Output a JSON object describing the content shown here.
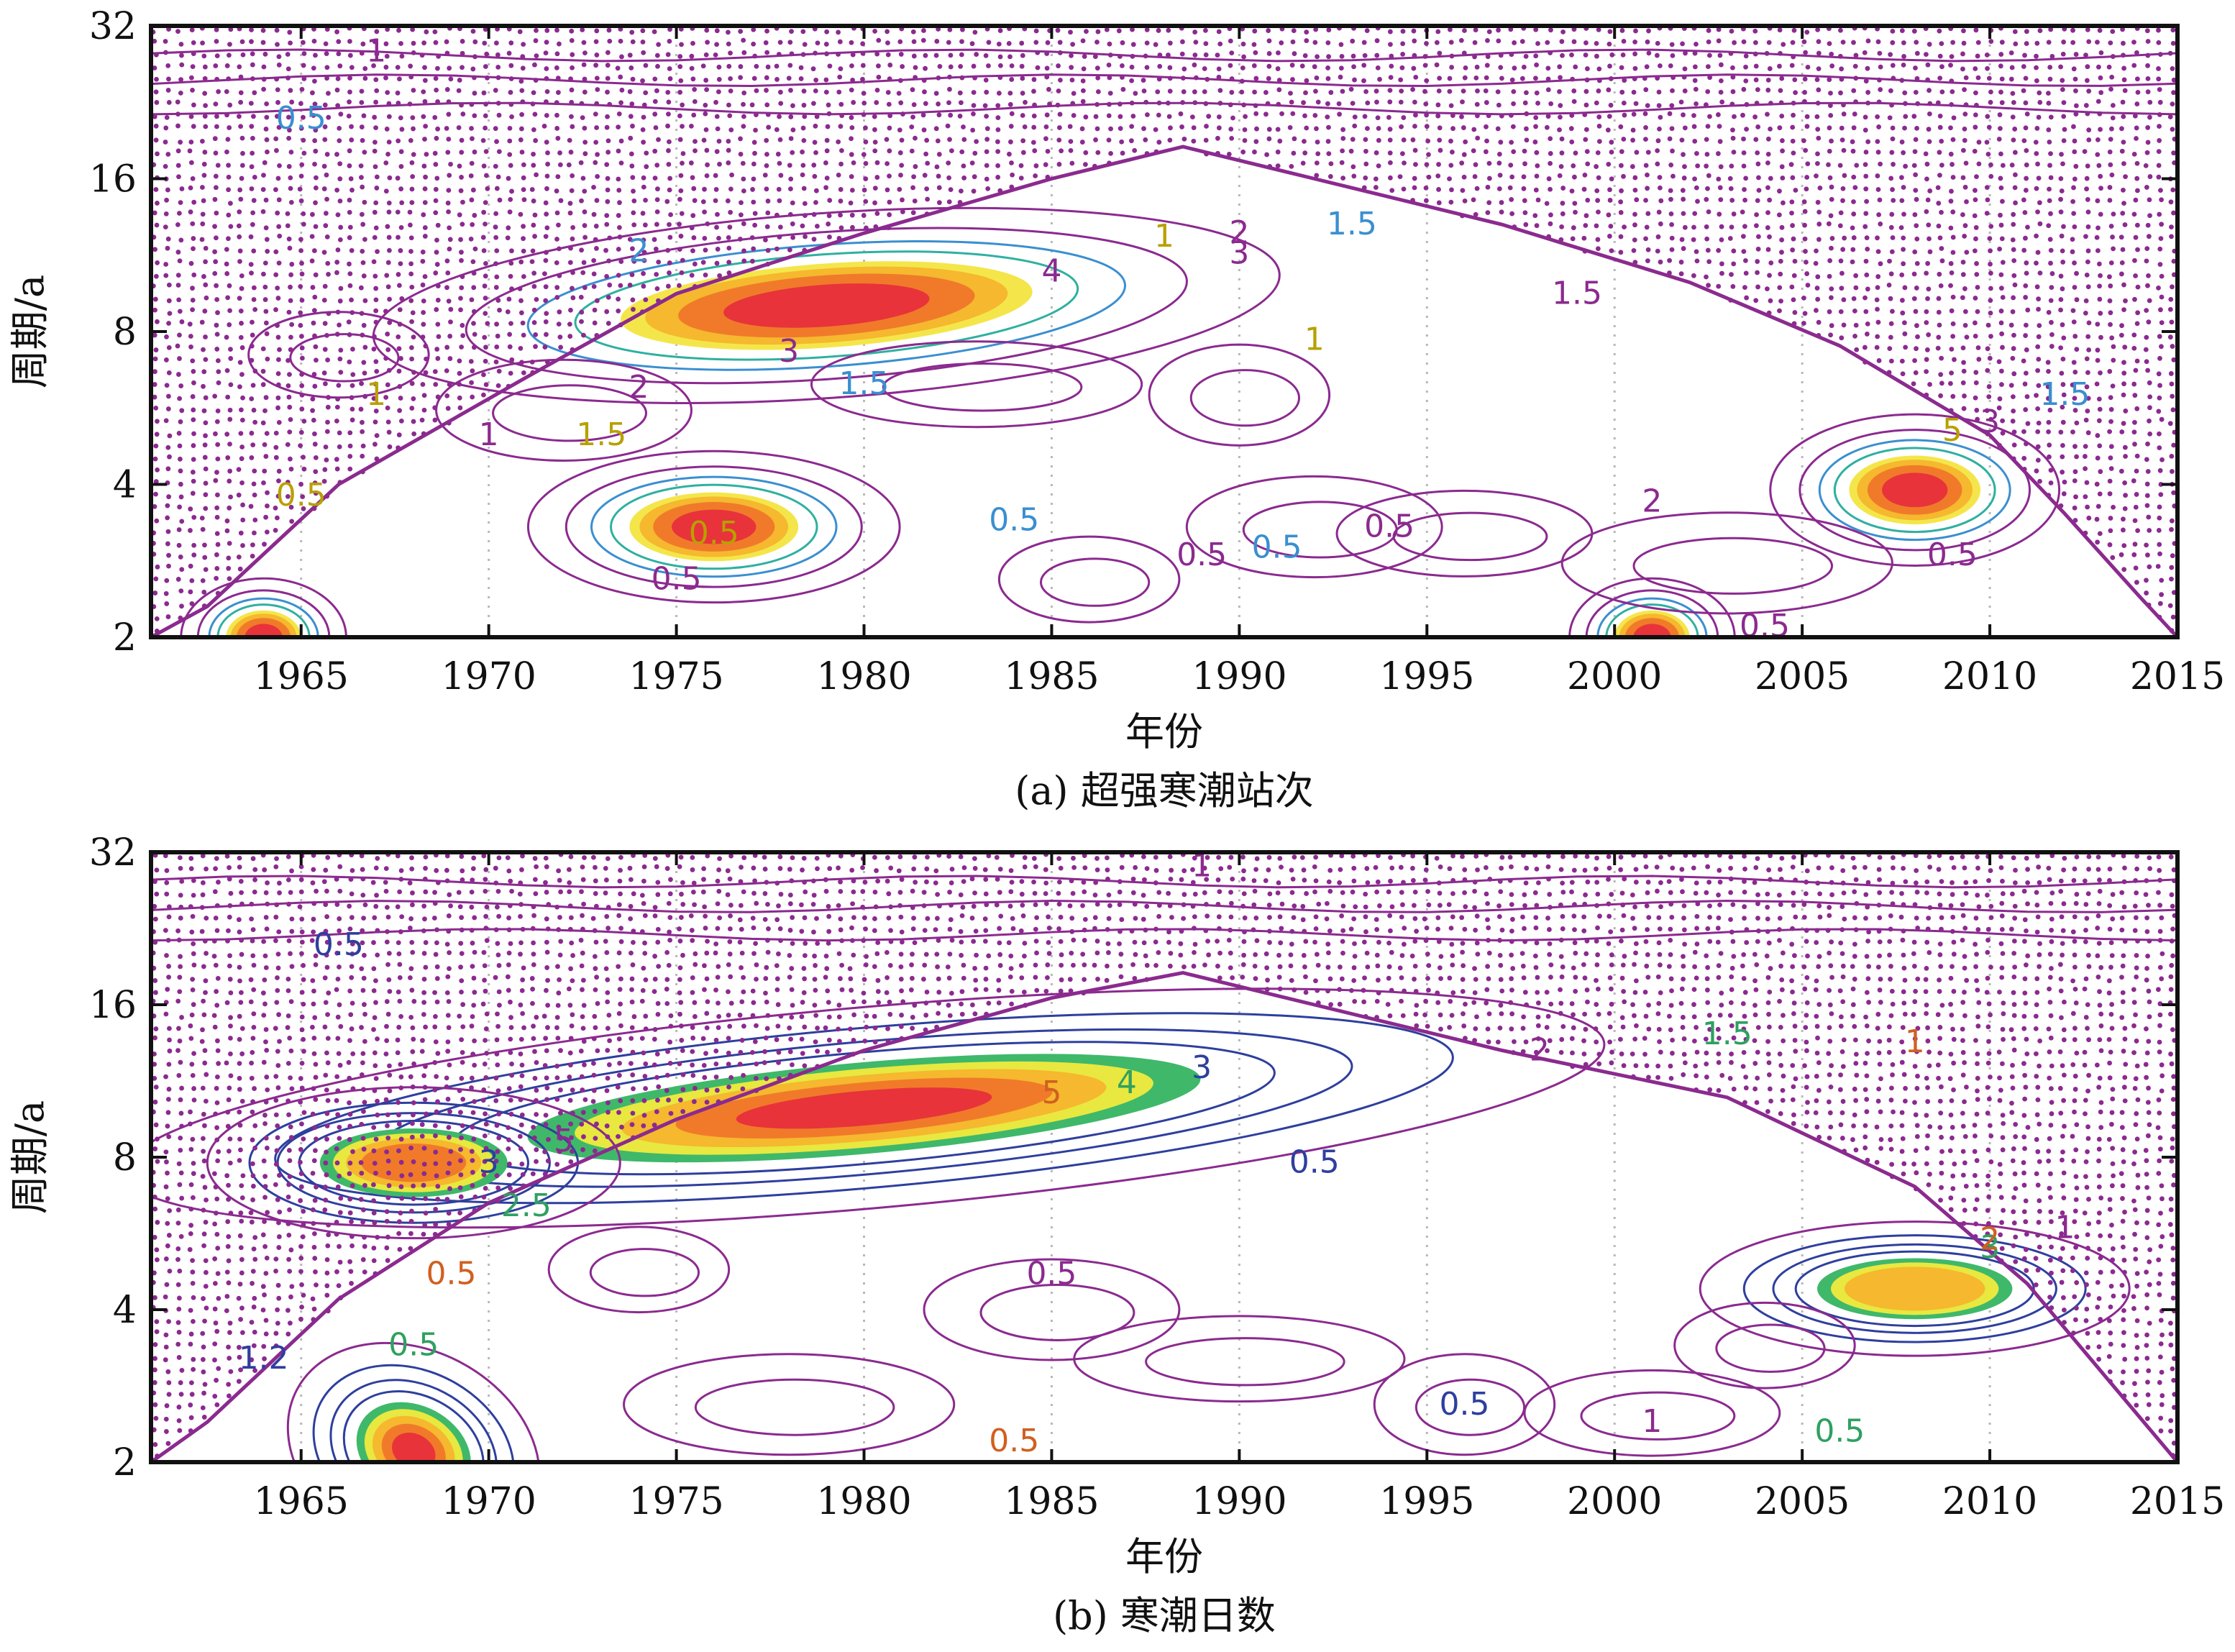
{
  "chart_data": [
    {
      "type": "heatmap",
      "subtype": "wavelet-power-spectrum",
      "caption": "(a) 超强寒潮站次",
      "xlabel": "年份",
      "ylabel": "周期/a",
      "xlim": [
        1961,
        2015
      ],
      "ylim": [
        2,
        32
      ],
      "yscale": "log2",
      "xticks": [
        1965,
        1970,
        1975,
        1980,
        1985,
        1990,
        1995,
        2000,
        2005,
        2010,
        2015
      ],
      "yticks": [
        2,
        4,
        8,
        16,
        32
      ],
      "grid": "vertical dotted",
      "colors": {
        "hot": "#e8333a",
        "warm": "#f07a2a",
        "mid": "#f5b82e",
        "cool": "#f4e64a",
        "contour": "#8b2a8f",
        "line_blue": "#3a8fd0",
        "line_teal": "#2fb0a0"
      },
      "cone_of_influence": [
        [
          1961,
          2
        ],
        [
          1962.5,
          2.3
        ],
        [
          1966,
          4
        ],
        [
          1971,
          6.5
        ],
        [
          1975,
          9.5
        ],
        [
          1980,
          12.5
        ],
        [
          1985,
          16
        ],
        [
          1988.5,
          18.5
        ],
        [
          1992,
          16
        ],
        [
          1997,
          13
        ],
        [
          2002,
          10
        ],
        [
          2006,
          7.5
        ],
        [
          2010,
          5
        ],
        [
          2012,
          3.5
        ],
        [
          2014,
          2.4
        ],
        [
          2015,
          2
        ]
      ],
      "power_centers": [
        {
          "year": 1979,
          "period": 9,
          "max_power": 4
        },
        {
          "year": 1976,
          "period": 3.3,
          "max_power": 3.5
        },
        {
          "year": 2008,
          "period": 3.9,
          "max_power": 3.5
        },
        {
          "year": 1964,
          "period": 2.0,
          "max_power": 3
        },
        {
          "year": 2001,
          "period": 2.0,
          "max_power": 3
        }
      ],
      "contour_labels": [
        "1",
        "0.5",
        "0.5",
        "3",
        "4",
        "1.5",
        "1",
        "2",
        "1",
        "0.5",
        "1.5",
        "3",
        "2",
        "0.5",
        "1",
        "1.5",
        "2",
        "1.5",
        "5",
        "0.5",
        "3",
        "1.5",
        "0.5",
        "0.5",
        "0.5",
        "2",
        "1",
        "0.5",
        "0.5"
      ]
    },
    {
      "type": "heatmap",
      "subtype": "wavelet-power-spectrum",
      "caption": "(b) 寒潮日数",
      "xlabel": "年份",
      "ylabel": "周期/a",
      "xlim": [
        1961,
        2015
      ],
      "ylim": [
        2,
        32
      ],
      "yscale": "log2",
      "xticks": [
        1965,
        1970,
        1975,
        1980,
        1985,
        1990,
        1995,
        2000,
        2005,
        2010,
        2015
      ],
      "yticks": [
        2,
        4,
        8,
        16,
        32
      ],
      "grid": "vertical dotted",
      "colors": {
        "hot": "#e8333a",
        "warm": "#f07a2a",
        "mid": "#f5b82e",
        "cool": "#e8e840",
        "green": "#3fb86a",
        "contour": "#8b2a8f",
        "line_blue": "#2e3f9e"
      },
      "cone_of_influence": [
        [
          1961,
          2
        ],
        [
          1962.5,
          2.4
        ],
        [
          1966,
          4.2
        ],
        [
          1970,
          6.5
        ],
        [
          1975,
          9.5
        ],
        [
          1980,
          13
        ],
        [
          1985,
          16.5
        ],
        [
          1988.5,
          18.5
        ],
        [
          1992,
          16
        ],
        [
          1997,
          13
        ],
        [
          2003,
          10.5
        ],
        [
          2008,
          7
        ],
        [
          2011,
          4.5
        ],
        [
          2013,
          3
        ],
        [
          2015,
          2
        ]
      ],
      "power_centers": [
        {
          "year": 1980,
          "period": 10,
          "max_power": 6
        },
        {
          "year": 1968,
          "period": 2.1,
          "max_power": 6
        },
        {
          "year": 2008,
          "period": 4.4,
          "max_power": 3.5
        },
        {
          "year": 1968,
          "period": 7.8,
          "max_power": 4
        }
      ],
      "contour_labels": [
        "1",
        "0.5",
        "1.5",
        "1",
        "2",
        "3",
        "4",
        "5",
        "5",
        "3",
        "2.5",
        "0.5",
        "0.5",
        "0.5",
        "3",
        "2",
        "1",
        "1.2",
        "0.5",
        "0.5",
        "1",
        "0.5",
        "0.5"
      ]
    }
  ]
}
